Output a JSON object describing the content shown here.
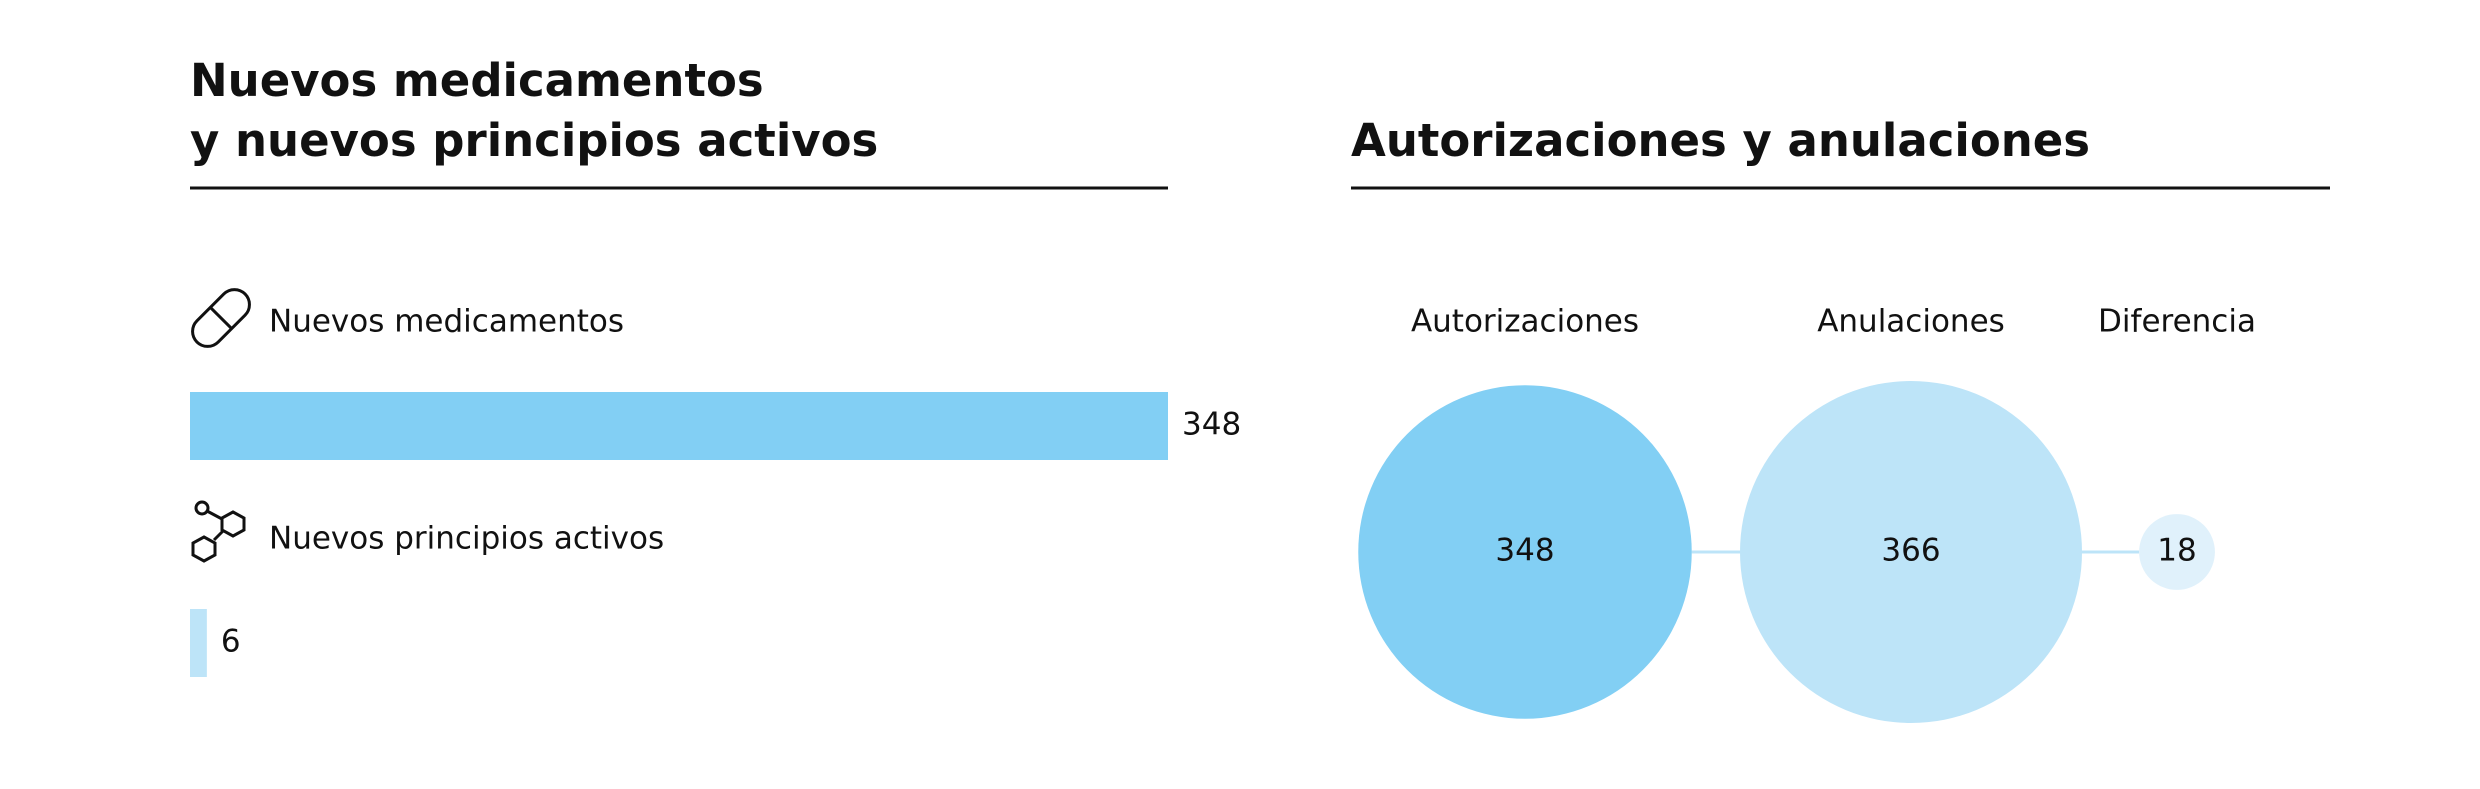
{
  "chart_data": [
    {
      "type": "hbar",
      "title": [
        "Nuevos medicamentos",
        "y nuevos principios activos"
      ],
      "categories": [
        "Nuevos medicamentos",
        "Nuevos principios activos"
      ],
      "values": [
        348,
        6
      ],
      "colors": [
        "#82cff4",
        "#bde4f8"
      ]
    },
    {
      "type": "bubble",
      "title": "Autorizaciones y anulaciones",
      "categories": [
        "Autorizaciones",
        "Anulaciones",
        "Diferencia"
      ],
      "values": [
        348,
        366,
        18
      ],
      "colors": [
        "#82cff4",
        "#bde4f8",
        "#e0f1fb"
      ]
    }
  ]
}
